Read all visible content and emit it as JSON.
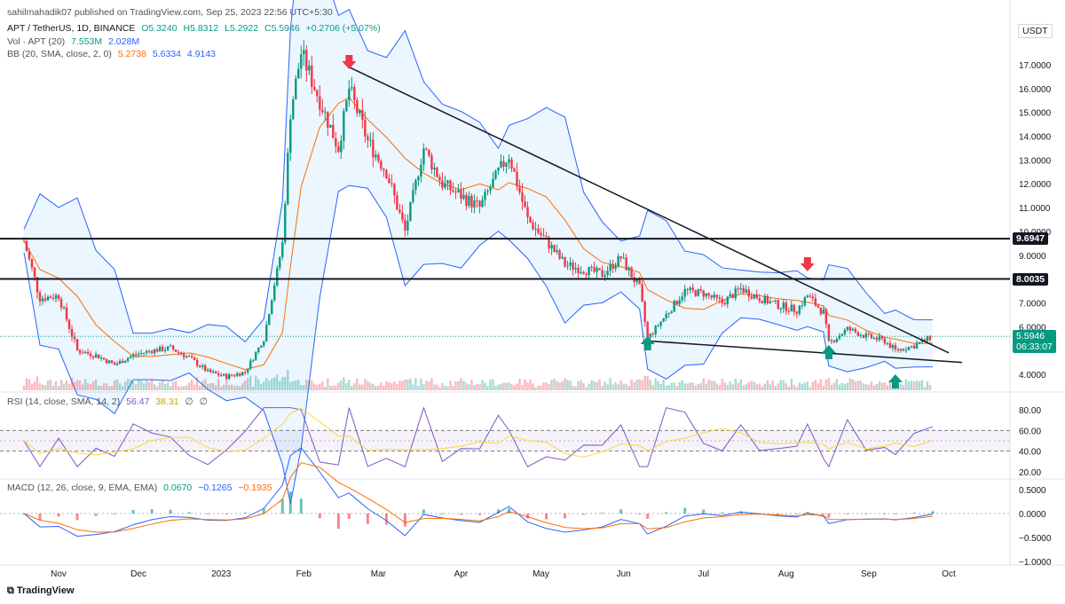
{
  "header": {
    "publisher": "sahilmahadik07 published on TradingView.com, Sep 25, 2023 22:56 UTC+5:30",
    "symbol": "APT / TetherUS, 1D, BINANCE",
    "ohlc": {
      "o": "O5.3240",
      "h": "H5.8312",
      "l": "L5.2922",
      "c": "C5.5946",
      "chg": "+0.2706 (+5.07%)"
    },
    "vol_label": "Vol · APT (20)",
    "vol_values": [
      "7.553M",
      "2.028M"
    ],
    "bb_label": "BB (20, SMA, close, 2, 0)",
    "bb_values": [
      "5.2738",
      "5.6334",
      "4.9143"
    ],
    "rsi_label": "RSI (14, close, SMA, 14, 2)",
    "rsi_values": [
      "56.47",
      "38.31",
      "∅",
      "∅"
    ],
    "macd_label": "MACD (12, 26, close, 9, EMA, EMA)",
    "macd_values": [
      "0.0670",
      "−0.1265",
      "−0.1935"
    ]
  },
  "currency": "USDT",
  "price_ticks": [
    "17.0000",
    "16.0000",
    "15.0000",
    "14.0000",
    "13.0000",
    "12.0000",
    "11.0000",
    "10.0000",
    "9.0000",
    "7.0000",
    "6.0000",
    "4.0000"
  ],
  "rsi_ticks": [
    "80.00",
    "60.00",
    "40.00",
    "20.00"
  ],
  "macd_ticks": [
    "0.5000",
    "0.0000",
    "−0.5000",
    "−1.0000"
  ],
  "time_ticks": [
    "Nov",
    "Dec",
    "2023",
    "Feb",
    "Mar",
    "Apr",
    "May",
    "Jun",
    "Jul",
    "Aug",
    "Sep",
    "Oct"
  ],
  "levels": [
    {
      "label": "9.6947",
      "value": 9.6947
    },
    {
      "label": "8.0035",
      "value": 8.0035
    }
  ],
  "last_price": {
    "label": "5.5946",
    "countdown": "06:33:07",
    "value": 5.5946
  },
  "colors": {
    "up": "#089981",
    "down": "#f23645",
    "bb": "#2962ff",
    "basis": "#ff6d00",
    "rsi": "#7e57c2",
    "signal": "#fdd835",
    "arrow_up": "#089981",
    "arrow_down": "#f23645",
    "trend": "#131722"
  },
  "chart_data": {
    "type": "candlestick",
    "title": "APT / TetherUS, 1D, BINANCE",
    "x_range": [
      "2022-10-18",
      "2023-09-25"
    ],
    "ylim": [
      3.8,
      18.1
    ],
    "closes": [
      {
        "date": "2022-10-19",
        "close": 9.6
      },
      {
        "date": "2022-10-25",
        "close": 7.2
      },
      {
        "date": "2022-11-01",
        "close": 7.3
      },
      {
        "date": "2022-11-08",
        "close": 5.0
      },
      {
        "date": "2022-11-15",
        "close": 4.8
      },
      {
        "date": "2022-11-22",
        "close": 4.4
      },
      {
        "date": "2022-11-29",
        "close": 4.8
      },
      {
        "date": "2022-12-06",
        "close": 5.0
      },
      {
        "date": "2022-12-13",
        "close": 5.1
      },
      {
        "date": "2022-12-20",
        "close": 4.7
      },
      {
        "date": "2022-12-27",
        "close": 4.1
      },
      {
        "date": "2023-01-03",
        "close": 3.9
      },
      {
        "date": "2023-01-10",
        "close": 4.1
      },
      {
        "date": "2023-01-17",
        "close": 5.5
      },
      {
        "date": "2023-01-24",
        "close": 9.5
      },
      {
        "date": "2023-01-27",
        "close": 15.0
      },
      {
        "date": "2023-01-31",
        "close": 17.5
      },
      {
        "date": "2023-02-07",
        "close": 15.5
      },
      {
        "date": "2023-02-14",
        "close": 13.5
      },
      {
        "date": "2023-02-18",
        "close": 16.0
      },
      {
        "date": "2023-02-25",
        "close": 13.8
      },
      {
        "date": "2023-03-04",
        "close": 12.5
      },
      {
        "date": "2023-03-11",
        "close": 10.0
      },
      {
        "date": "2023-03-18",
        "close": 13.5
      },
      {
        "date": "2023-03-25",
        "close": 12.0
      },
      {
        "date": "2023-04-01",
        "close": 11.5
      },
      {
        "date": "2023-04-08",
        "close": 11.0
      },
      {
        "date": "2023-04-15",
        "close": 12.5
      },
      {
        "date": "2023-04-19",
        "close": 13.2
      },
      {
        "date": "2023-04-26",
        "close": 10.5
      },
      {
        "date": "2023-05-03",
        "close": 9.6
      },
      {
        "date": "2023-05-10",
        "close": 8.6
      },
      {
        "date": "2023-05-17",
        "close": 8.4
      },
      {
        "date": "2023-05-24",
        "close": 8.2
      },
      {
        "date": "2023-05-31",
        "close": 8.9
      },
      {
        "date": "2023-06-07",
        "close": 7.6
      },
      {
        "date": "2023-06-10",
        "close": 5.5
      },
      {
        "date": "2023-06-17",
        "close": 6.5
      },
      {
        "date": "2023-06-24",
        "close": 7.5
      },
      {
        "date": "2023-07-01",
        "close": 7.4
      },
      {
        "date": "2023-07-08",
        "close": 7.0
      },
      {
        "date": "2023-07-15",
        "close": 7.6
      },
      {
        "date": "2023-07-22",
        "close": 7.2
      },
      {
        "date": "2023-07-29",
        "close": 6.9
      },
      {
        "date": "2023-08-05",
        "close": 6.7
      },
      {
        "date": "2023-08-09",
        "close": 7.3
      },
      {
        "date": "2023-08-15",
        "close": 6.6
      },
      {
        "date": "2023-08-17",
        "close": 5.3
      },
      {
        "date": "2023-08-24",
        "close": 5.9
      },
      {
        "date": "2023-08-31",
        "close": 5.6
      },
      {
        "date": "2023-09-07",
        "close": 5.4
      },
      {
        "date": "2023-09-11",
        "close": 5.0
      },
      {
        "date": "2023-09-18",
        "close": 5.2
      },
      {
        "date": "2023-09-25",
        "close": 5.5946
      }
    ],
    "trendlines": [
      {
        "from": {
          "date": "2023-02-18",
          "value": 16.9
        },
        "to": {
          "date": "2023-10-01",
          "value": 4.9
        }
      },
      {
        "from": {
          "date": "2023-06-10",
          "value": 5.4
        },
        "to": {
          "date": "2023-10-06",
          "value": 4.5
        }
      }
    ],
    "markers_down": [
      "2023-02-18",
      "2023-08-09"
    ],
    "markers_up": [
      "2023-06-10",
      "2023-08-17",
      "2023-09-11"
    ]
  }
}
